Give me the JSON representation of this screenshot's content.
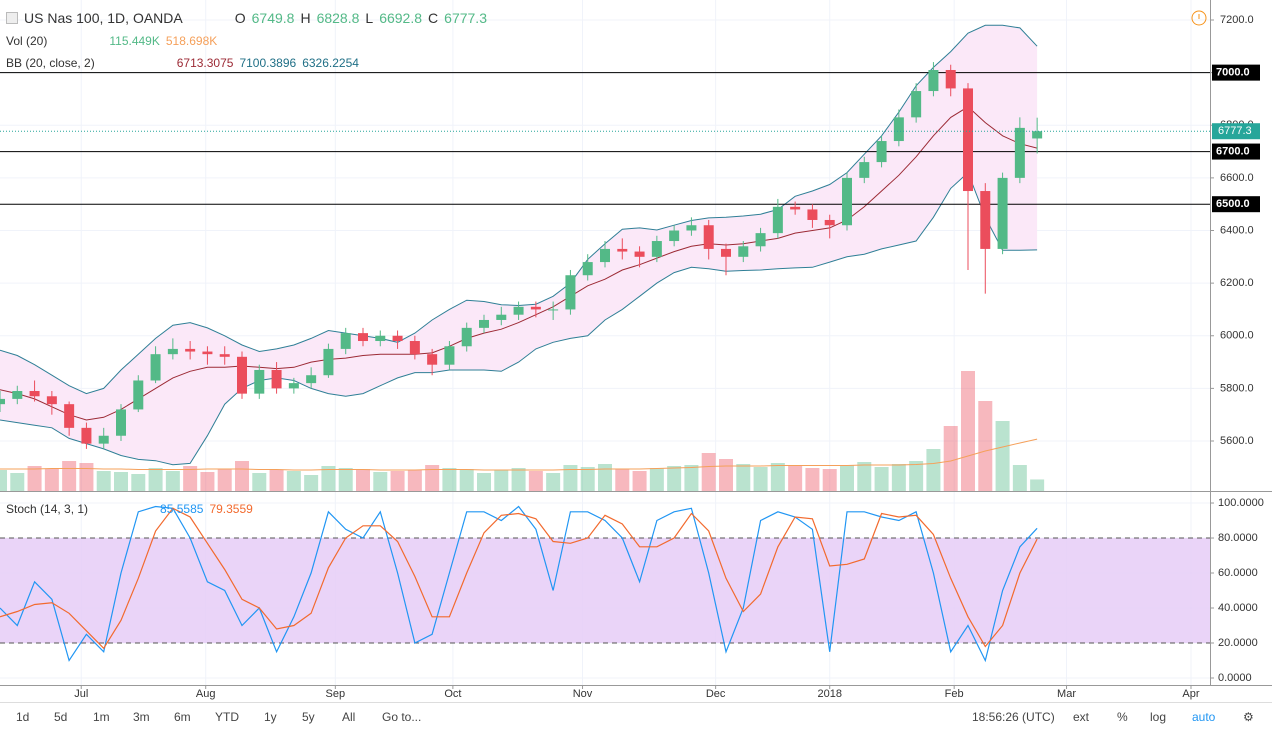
{
  "chart_data": [
    {
      "type": "candlestick",
      "title": "US Nas 100, 1D, OANDA",
      "ohlc_labels": [
        "O",
        "H",
        "L",
        "C"
      ],
      "ohlc_values": [
        6749.8,
        6828.8,
        6692.8,
        6777.3
      ],
      "up_color": "#53b987",
      "down_color": "#eb4d5c",
      "x": [
        0,
        1,
        2,
        3,
        4,
        5,
        6,
        7,
        8,
        9,
        10,
        11,
        12,
        13,
        14,
        15,
        16,
        17,
        18,
        19,
        20,
        21,
        22,
        23,
        24,
        25,
        26,
        27,
        28,
        29,
        30,
        31,
        32,
        33,
        34,
        35,
        36,
        37,
        38,
        39,
        40,
        41,
        42,
        43,
        44,
        45,
        46,
        47,
        48,
        49,
        50,
        51,
        52,
        53,
        54,
        55,
        56,
        57,
        58,
        59,
        60
      ],
      "xlim": [
        0,
        70
      ],
      "xticks": [
        {
          "value": 4.7,
          "label": "Jul"
        },
        {
          "value": 11.9,
          "label": "Aug"
        },
        {
          "value": 19.4,
          "label": "Sep"
        },
        {
          "value": 26.2,
          "label": "Oct"
        },
        {
          "value": 33.7,
          "label": "Nov"
        },
        {
          "value": 41.4,
          "label": "Dec"
        },
        {
          "value": 48,
          "label": "2018"
        },
        {
          "value": 55.2,
          "label": "Feb"
        },
        {
          "value": 61.7,
          "label": "Mar"
        },
        {
          "value": 68.9,
          "label": "Apr"
        }
      ],
      "ylim": [
        5410,
        7276
      ],
      "yticks": [
        {
          "value": 5600,
          "label": "5600.0"
        },
        {
          "value": 5800,
          "label": "5800.0"
        },
        {
          "value": 6000,
          "label": "6000.0"
        },
        {
          "value": 6200,
          "label": "6200.0"
        },
        {
          "value": 6400,
          "label": "6400.0"
        },
        {
          "value": 6600,
          "label": "6600.0"
        },
        {
          "value": 6800,
          "label": "6800.0"
        },
        {
          "value": 7000,
          "label": "7000.0"
        },
        {
          "value": 7200,
          "label": "7200.0"
        }
      ],
      "grid": true,
      "open": [
        5740,
        5760,
        5790,
        5770,
        5740,
        5650,
        5590,
        5620,
        5720,
        5830,
        5930,
        5950,
        5940,
        5930,
        5920,
        5780,
        5870,
        5800,
        5820,
        5850,
        5950,
        6010,
        5980,
        6000,
        5980,
        5930,
        5890,
        5960,
        6030,
        6060,
        6080,
        6110,
        6100,
        6100,
        6230,
        6280,
        6330,
        6320,
        6300,
        6360,
        6400,
        6420,
        6330,
        6300,
        6340,
        6390,
        6490,
        6480,
        6440,
        6420,
        6600,
        6660,
        6740,
        6830,
        6930,
        7010,
        6940,
        6550,
        6330,
        6600,
        6749.8
      ],
      "high": [
        5790,
        5810,
        5830,
        5790,
        5750,
        5670,
        5650,
        5740,
        5850,
        5960,
        5990,
        5980,
        5960,
        5960,
        5940,
        5890,
        5900,
        5840,
        5880,
        5970,
        6030,
        6030,
        6020,
        6020,
        6000,
        5950,
        5980,
        6050,
        6080,
        6110,
        6130,
        6130,
        6130,
        6250,
        6310,
        6360,
        6370,
        6340,
        6380,
        6420,
        6450,
        6440,
        6350,
        6360,
        6410,
        6520,
        6510,
        6500,
        6460,
        6620,
        6680,
        6760,
        6860,
        6960,
        7040,
        7030,
        6960,
        6580,
        6620,
        6830,
        6828.8
      ],
      "low": [
        5710,
        5740,
        5750,
        5700,
        5620,
        5570,
        5570,
        5600,
        5710,
        5820,
        5910,
        5910,
        5890,
        5890,
        5760,
        5760,
        5780,
        5780,
        5800,
        5840,
        5930,
        5960,
        5960,
        5950,
        5910,
        5850,
        5870,
        5940,
        6010,
        6040,
        6060,
        6070,
        6060,
        6080,
        6210,
        6260,
        6290,
        6260,
        6280,
        6340,
        6380,
        6290,
        6230,
        6280,
        6320,
        6370,
        6460,
        6410,
        6370,
        6400,
        6580,
        6640,
        6720,
        6810,
        6910,
        6910,
        6250,
        6160,
        6310,
        6580,
        6692.8
      ],
      "close": [
        5760,
        5790,
        5770,
        5740,
        5650,
        5590,
        5620,
        5720,
        5830,
        5930,
        5950,
        5940,
        5930,
        5920,
        5780,
        5870,
        5800,
        5820,
        5850,
        5950,
        6010,
        5980,
        6000,
        5980,
        5930,
        5890,
        5960,
        6030,
        6060,
        6080,
        6110,
        6100,
        6100,
        6230,
        6280,
        6330,
        6320,
        6300,
        6360,
        6400,
        6420,
        6330,
        6300,
        6340,
        6390,
        6490,
        6480,
        6440,
        6420,
        6600,
        6660,
        6740,
        6830,
        6930,
        7010,
        6940,
        6550,
        6330,
        6600,
        6790,
        6777.3
      ],
      "price_color": "#26a69a",
      "levels": [
        {
          "value": 7000,
          "label": "7000.0"
        },
        {
          "value": 6700,
          "label": "6700.0"
        },
        {
          "value": 6500,
          "label": "6500.0"
        }
      ],
      "volume": {
        "name": "Vol (20)",
        "stats": [
          "115.449K",
          "518.698K"
        ],
        "stat_colors": [
          "#53b987",
          "#f5a05a"
        ],
        "lim": [
          0,
          4910
        ],
        "ma_color": "#f5a05a",
        "values": [
          210,
          180,
          250,
          220,
          300,
          280,
          200,
          190,
          170,
          230,
          200,
          250,
          190,
          220,
          300,
          180,
          210,
          200,
          160,
          250,
          230,
          220,
          190,
          200,
          210,
          260,
          230,
          220,
          180,
          210,
          230,
          200,
          180,
          260,
          240,
          270,
          220,
          200,
          230,
          250,
          260,
          380,
          320,
          270,
          240,
          280,
          250,
          230,
          220,
          260,
          290,
          240,
          270,
          300,
          420,
          650,
          1200,
          900,
          700,
          260,
          115.449
        ],
        "ma": [
          220,
          220,
          220,
          225,
          225,
          225,
          220,
          220,
          215,
          215,
          215,
          215,
          220,
          220,
          220,
          215,
          215,
          210,
          210,
          215,
          215,
          215,
          210,
          210,
          210,
          215,
          215,
          215,
          210,
          210,
          210,
          210,
          210,
          215,
          215,
          220,
          220,
          220,
          225,
          230,
          235,
          245,
          250,
          250,
          250,
          255,
          255,
          255,
          255,
          255,
          260,
          260,
          260,
          265,
          275,
          300,
          350,
          400,
          440,
          480,
          518.698
        ]
      },
      "bands": {
        "name": "BB (20, close, 2)",
        "stats": [
          6713.3075,
          7100.3896,
          6326.2254
        ],
        "stat_colors": [
          "#9c2a35",
          "#1f6f86",
          "#1f6f86"
        ],
        "basis_color": "#9c2a35",
        "band_color": "#2f7f96",
        "fill": "#fbe8f8",
        "basis": [
          5795,
          5780,
          5760,
          5730,
          5700,
          5680,
          5690,
          5720,
          5760,
          5800,
          5840,
          5865,
          5880,
          5880,
          5885,
          5880,
          5875,
          5880,
          5900,
          5910,
          5915,
          5925,
          5930,
          5930,
          5930,
          5935,
          5960,
          5990,
          6010,
          6025,
          6050,
          6080,
          6110,
          6150,
          6190,
          6215,
          6250,
          6270,
          6295,
          6320,
          6340,
          6350,
          6345,
          6350,
          6360,
          6370,
          6390,
          6400,
          6410,
          6440,
          6490,
          6550,
          6610,
          6680,
          6760,
          6830,
          6870,
          6810,
          6760,
          6730,
          6713.3075
        ],
        "upper": [
          5945,
          5925,
          5890,
          5850,
          5810,
          5780,
          5800,
          5870,
          5930,
          5990,
          6040,
          6050,
          6030,
          6000,
          5965,
          5940,
          5950,
          5965,
          5990,
          6020,
          6010,
          6000,
          5990,
          5975,
          6010,
          6060,
          6100,
          6135,
          6130,
          6118,
          6115,
          6120,
          6150,
          6200,
          6290,
          6350,
          6405,
          6410,
          6402,
          6420,
          6438,
          6448,
          6450,
          6455,
          6462,
          6480,
          6530,
          6550,
          6575,
          6620,
          6690,
          6760,
          6850,
          6950,
          7020,
          7080,
          7150,
          7180,
          7180,
          7170,
          7100.3896
        ],
        "lower": [
          5680,
          5670,
          5660,
          5650,
          5610,
          5590,
          5570,
          5545,
          5530,
          5525,
          5510,
          5515,
          5620,
          5740,
          5800,
          5830,
          5840,
          5830,
          5800,
          5780,
          5770,
          5780,
          5810,
          5840,
          5860,
          5860,
          5870,
          5870,
          5870,
          5865,
          5900,
          5950,
          5975,
          5990,
          6000,
          6060,
          6100,
          6150,
          6200,
          6240,
          6260,
          6255,
          6245,
          6248,
          6250,
          6255,
          6258,
          6260,
          6280,
          6300,
          6310,
          6330,
          6345,
          6360,
          6450,
          6560,
          6620,
          6450,
          6325,
          6325,
          6326.2254
        ]
      }
    },
    {
      "type": "stochastic",
      "title": "Stoch (14, 3, 1)",
      "stats": [
        85.5585,
        79.3559
      ],
      "ylim": [
        -4,
        106.3
      ],
      "yticks": [
        {
          "value": 0,
          "label": "0.0000"
        },
        {
          "value": 20,
          "label": "20.0000"
        },
        {
          "value": 40,
          "label": "40.0000"
        },
        {
          "value": 60,
          "label": "60.0000"
        },
        {
          "value": 80,
          "label": "80.0000"
        },
        {
          "value": 100,
          "label": "100.0000"
        }
      ],
      "band": [
        20,
        80
      ],
      "band_color": "#e6ccf7",
      "series": [
        {
          "color": "#2196f3",
          "values": [
            40,
            30,
            55,
            45,
            10,
            25,
            15,
            60,
            95,
            98,
            97,
            80,
            55,
            50,
            30,
            40,
            15,
            35,
            60,
            95,
            85,
            80,
            95,
            60,
            20,
            25,
            60,
            95,
            95,
            90,
            98,
            85,
            50,
            95,
            95,
            90,
            80,
            55,
            90,
            95,
            97,
            60,
            15,
            40,
            90,
            95,
            92,
            85,
            15,
            95,
            95,
            92,
            90,
            95,
            60,
            15,
            30,
            10,
            50,
            75,
            85.5585
          ]
        },
        {
          "color": "#f26a2e",
          "values": [
            35,
            38,
            42,
            43,
            37,
            27,
            17,
            33,
            57,
            84,
            97,
            92,
            77,
            62,
            45,
            40,
            28,
            30,
            37,
            63,
            80,
            87,
            87,
            78,
            58,
            35,
            35,
            60,
            83,
            93,
            94,
            91,
            78,
            77,
            80,
            93,
            88,
            75,
            75,
            80,
            94,
            84,
            57,
            38,
            48,
            75,
            92,
            91,
            64,
            65,
            68,
            94,
            92,
            93,
            82,
            57,
            35,
            18,
            30,
            60,
            79.3559
          ]
        }
      ]
    }
  ],
  "toolbar": {
    "ranges": [
      "1d",
      "5d",
      "1m",
      "3m",
      "6m",
      "YTD",
      "1y",
      "5y",
      "All"
    ],
    "goto": "Go to...",
    "time": "18:56:26 (UTC)",
    "options": [
      "ext",
      "%",
      "log",
      "auto"
    ]
  }
}
